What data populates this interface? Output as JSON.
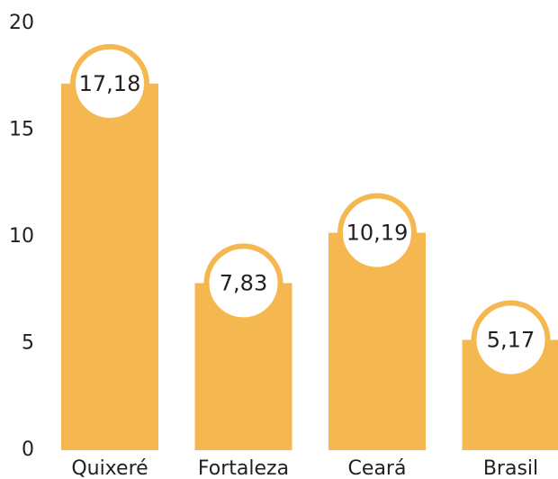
{
  "chart_data": {
    "type": "bar",
    "categories": [
      "Quixeré",
      "Fortaleza",
      "Ceará",
      "Brasil"
    ],
    "values": [
      17.18,
      7.83,
      10.19,
      5.17
    ],
    "value_labels": [
      "17,18",
      "7,83",
      "10,19",
      "5,17"
    ],
    "color": "#f5b851",
    "ylim": [
      0,
      20
    ],
    "yticks": [
      0,
      5,
      10,
      15,
      20
    ],
    "grid": false
  }
}
